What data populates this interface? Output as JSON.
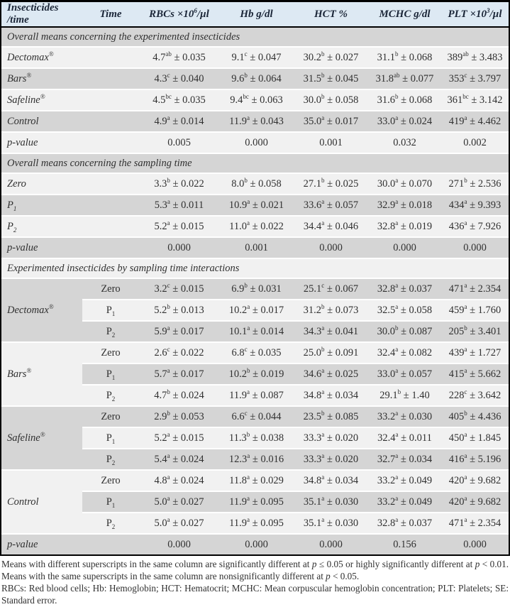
{
  "colors": {
    "header_bg": "#dde9f3",
    "row_shade": "#d5d5d5",
    "row_light": "#f1f1f1",
    "border": "#000000"
  },
  "table": {
    "columns": [
      "Insecticides /time",
      "Time",
      "RBCs ×10^{6}/µl",
      "Hb g/dl",
      "HCT %",
      "MCHC g/dl",
      "PLT ×10^{3}/µl"
    ],
    "sections": [
      {
        "title": "Overall means concerning the experimented insecticides",
        "rows": [
          {
            "label": "Dectomax^{®}",
            "time": "",
            "values": [
              "4.7^{ab} ± 0.035",
              "9.1^{c} ± 0.047",
              "30.2^{b} ± 0.027",
              "31.1^{b} ± 0.068",
              "389^{ab} ± 3.483"
            ]
          },
          {
            "label": "Bars^{®}",
            "time": "",
            "values": [
              "4.3^{c} ± 0.040",
              "9.6^{b} ± 0.064",
              "31.5^{b} ± 0.045",
              "31.8^{ab} ± 0.077",
              "353^{c} ± 3.797"
            ]
          },
          {
            "label": "Safeline^{®}",
            "time": "",
            "values": [
              "4.5^{bc} ± 0.035",
              "9.4^{bc} ± 0.063",
              "30.0^{b} ± 0.058",
              "31.6^{b} ± 0.068",
              "361^{bc} ± 3.142"
            ]
          },
          {
            "label": "Control",
            "time": "",
            "values": [
              "4.9^{a} ± 0.014",
              "11.9^{a} ± 0.043",
              "35.0^{a} ± 0.017",
              "33.0^{a} ± 0.024",
              "419^{a} ± 4.462"
            ]
          },
          {
            "label": "p-value",
            "time": "",
            "values": [
              "0.005",
              "0.000",
              "0.001",
              "0.032",
              "0.002"
            ]
          }
        ]
      },
      {
        "title": "Overall means concerning the sampling time",
        "rows": [
          {
            "label": "Zero",
            "time": "",
            "values": [
              "3.3^{b} ± 0.022",
              "8.0^{b} ± 0.058",
              "27.1^{b} ± 0.025",
              "30.0^{a} ± 0.070",
              "271^{b} ± 2.536"
            ]
          },
          {
            "label": "P~{1}",
            "time": "",
            "values": [
              "5.3^{a} ± 0.011",
              "10.9^{a} ± 0.021",
              "33.6^{a} ± 0.057",
              "32.9^{a} ± 0.018",
              "434^{a} ± 9.393"
            ]
          },
          {
            "label": "P~{2}",
            "time": "",
            "values": [
              "5.2^{a} ± 0.015",
              "11.0^{a} ± 0.022",
              "34.4^{a} ± 0.046",
              "32.8^{a} ± 0.019",
              "436^{a} ± 7.926"
            ]
          },
          {
            "label": "p-value",
            "time": "",
            "values": [
              "0.000",
              "0.001",
              "0.000",
              "0.000",
              "0.000"
            ]
          }
        ]
      },
      {
        "title": "Experimented insecticides by sampling time interactions",
        "groups": [
          {
            "label": "Dectomax^{®}",
            "rows": [
              {
                "time": "Zero",
                "values": [
                  "3.2^{c} ± 0.015",
                  "6.9^{b} ± 0.031",
                  "25.1^{c} ± 0.067",
                  "32.8^{a} ± 0.037",
                  "471^{a} ± 2.354"
                ]
              },
              {
                "time": "P~{1}",
                "values": [
                  "5.2^{b} ± 0.013",
                  "10.2^{a} ± 0.017",
                  "31.2^{b} ± 0.073",
                  "32.5^{a} ± 0.058",
                  "459^{a} ± 1.760"
                ]
              },
              {
                "time": "P~{2}",
                "values": [
                  "5.9^{a} ± 0.017",
                  "10.1^{a} ± 0.014",
                  "34.3^{a} ± 0.041",
                  "30.0^{b} ± 0.087",
                  "205^{b} ± 3.401"
                ]
              }
            ]
          },
          {
            "label": "Bars^{®}",
            "rows": [
              {
                "time": "Zero",
                "values": [
                  "2.6^{c} ± 0.022",
                  "6.8^{c} ± 0.035",
                  "25.0^{b} ± 0.091",
                  "32.4^{a} ± 0.082",
                  "439^{a} ± 1.727"
                ]
              },
              {
                "time": "P~{1}",
                "values": [
                  "5.7^{a} ± 0.017",
                  "10.2^{b} ± 0.019",
                  "34.6^{a} ± 0.025",
                  "33.0^{a} ± 0.057",
                  "415^{a} ± 5.662"
                ]
              },
              {
                "time": "P~{2}",
                "values": [
                  "4.7^{b} ± 0.024",
                  "11.9^{a} ± 0.087",
                  "34.8^{a} ± 0.034",
                  "29.1^{b} ± 1.40",
                  "228^{c} ± 3.642"
                ]
              }
            ]
          },
          {
            "label": "Safeline^{®}",
            "rows": [
              {
                "time": "Zero",
                "values": [
                  "2.9^{b} ± 0.053",
                  "6.6^{c} ± 0.044",
                  "23.5^{b} ± 0.085",
                  "33.2^{a} ± 0.030",
                  "405^{b} ± 4.436"
                ]
              },
              {
                "time": "P~{1}",
                "values": [
                  "5.2^{a} ± 0.015",
                  "11.3^{b} ± 0.038",
                  "33.3^{a} ± 0.020",
                  "32.4^{a} ± 0.011",
                  "450^{a} ± 1.845"
                ]
              },
              {
                "time": "P~{2}",
                "values": [
                  "5.4^{a} ± 0.024",
                  "12.3^{a} ± 0.016",
                  "33.3^{a} ± 0.020",
                  "32.7^{a} ± 0.034",
                  "416^{a} ± 5.196"
                ]
              }
            ]
          },
          {
            "label": "Control",
            "rows": [
              {
                "time": "Zero",
                "values": [
                  "4.8^{a} ± 0.024",
                  "11.8^{a} ± 0.029",
                  "34.8^{a} ± 0.034",
                  "33.2^{a} ± 0.049",
                  "420^{a} ± 9.682"
                ]
              },
              {
                "time": "P~{1}",
                "values": [
                  "5.0^{a} ± 0.027",
                  "11.9^{a} ± 0.095",
                  "35.1^{a} ± 0.030",
                  "33.2^{a} ± 0.049",
                  "420^{a} ± 9.682"
                ]
              },
              {
                "time": "P~{2}",
                "values": [
                  "5.0^{a} ± 0.027",
                  "11.9^{a} ± 0.095",
                  "35.1^{a} ± 0.030",
                  "32.8^{a} ± 0.037",
                  "471^{a} ± 2.354"
                ]
              }
            ]
          }
        ],
        "rows": [
          {
            "label": "p-value",
            "time": "",
            "values": [
              "0.000",
              "0.000",
              "0.000",
              "0.156",
              "0.000"
            ]
          }
        ]
      }
    ]
  },
  "footnotes": [
    "Means with different superscripts in the same column are significantly different at /{p} ≤ 0.05 or highly significantly different at /{p} < 0.01. Means with the same superscripts in the same column are nonsignificantly different at /{p} < 0.05.",
    "RBCs: Red blood cells; Hb: Hemoglobin; HCT: Hematocrit; MCHC: Mean corpuscular hemoglobin concentration; PLT: Platelets; SE: Standard error."
  ]
}
